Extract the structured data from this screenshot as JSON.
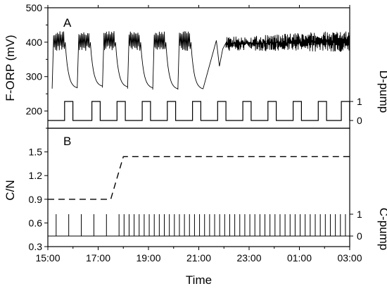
{
  "chart_data": [
    {
      "type": "line",
      "panel_label": "A",
      "ylabel": "F-ORP (mV)",
      "ylim": [
        150,
        500
      ],
      "yticks": [
        200,
        300,
        400,
        500
      ],
      "right_label": "D-pump",
      "right_ticks": [
        "0",
        "1"
      ],
      "x": [
        "15:00",
        "17:00",
        "19:00",
        "21:00",
        "23:00",
        "01:00",
        "03:00"
      ],
      "series": [
        {
          "description_free": true,
          "values": [
            {
              "t": "15:10",
              "v": 265
            },
            {
              "t": "15:15",
              "v": 410
            },
            {
              "t": "15:40",
              "v": 415
            },
            {
              "t": "16:00",
              "v": 270
            },
            {
              "t": "16:15",
              "v": 415
            },
            {
              "t": "16:40",
              "v": 415
            },
            {
              "t": "17:00",
              "v": 268
            },
            {
              "t": "17:15",
              "v": 415
            },
            {
              "t": "17:40",
              "v": 415
            },
            {
              "t": "18:00",
              "v": 265
            },
            {
              "t": "18:15",
              "v": 415
            },
            {
              "t": "18:40",
              "v": 415
            },
            {
              "t": "19:00",
              "v": 262
            },
            {
              "t": "19:15",
              "v": 415
            },
            {
              "t": "19:40",
              "v": 415
            },
            {
              "t": "20:00",
              "v": 262
            },
            {
              "t": "20:15",
              "v": 415
            },
            {
              "t": "20:40",
              "v": 420
            },
            {
              "t": "21:00",
              "v": 258
            },
            {
              "t": "21:15",
              "v": 420
            },
            {
              "t": "21:45",
              "v": 410
            },
            {
              "t": "21:55",
              "v": 330
            },
            {
              "t": "22:05",
              "v": 395
            },
            {
              "t": "03:00",
              "v": 400
            }
          ]
        }
      ],
      "pump_on_starts": [
        "15:40",
        "16:45",
        "17:45",
        "18:45",
        "19:45",
        "20:45",
        "21:45",
        "22:45",
        "23:45",
        "00:45",
        "01:45",
        "02:40"
      ],
      "pump_on_hours": 0.33
    },
    {
      "type": "line",
      "panel_label": "B",
      "xlabel": "Time",
      "ylabel": "C/N",
      "ylim": [
        0.3,
        1.8
      ],
      "yticks": [
        0.3,
        0.6,
        0.9,
        1.2,
        1.5
      ],
      "right_label": "C-pump",
      "right_ticks": [
        "0",
        "1"
      ],
      "x": [
        "15:00",
        "17:00",
        "19:00",
        "21:00",
        "23:00",
        "01:00",
        "03:00"
      ],
      "series": [
        {
          "style": "dashed",
          "values": [
            {
              "t": "15:00",
              "v": 0.9
            },
            {
              "t": "17:30",
              "v": 0.9
            },
            {
              "t": "18:00",
              "v": 1.44
            },
            {
              "t": "03:00",
              "v": 1.44
            }
          ]
        }
      ],
      "c_pump_pulse_interval_min": [
        60,
        20
      ],
      "c_pump_switch_time": "17:45"
    }
  ]
}
